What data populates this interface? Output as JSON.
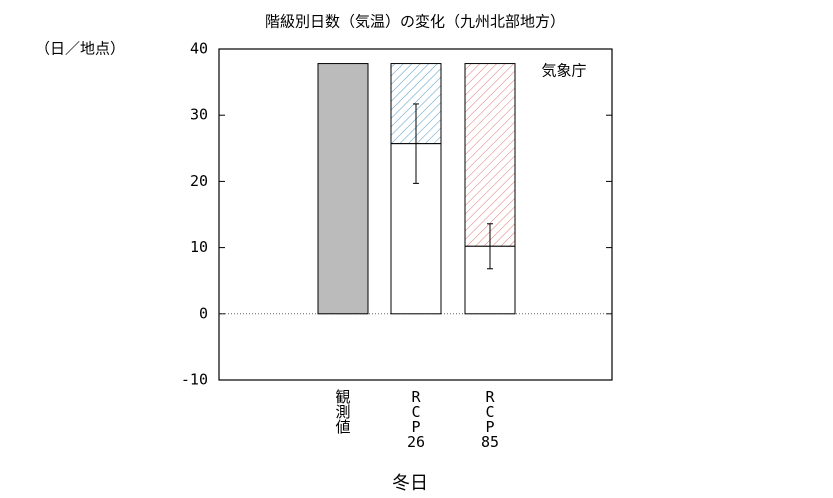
{
  "chart_data": {
    "type": "bar",
    "title": "階級別日数（気温）の変化（九州北部地方）",
    "y_unit": "（日／地点）",
    "annotation": "気象庁",
    "x_label": "冬日",
    "categories": [
      "観測値",
      "RCP26",
      "RCP85"
    ],
    "values": [
      37.8,
      25.7,
      10.2
    ],
    "errors": [
      null,
      6.0,
      3.4
    ],
    "colors": [
      "#bbbbbb",
      "#ffffff",
      "#ffffff"
    ],
    "hatch_colors": [
      null,
      "#5a9ec4",
      "#e07a70"
    ],
    "ylim": [
      -10,
      40
    ],
    "yticks": [
      -10,
      0,
      10,
      20,
      30,
      40
    ],
    "zero_line": true
  }
}
